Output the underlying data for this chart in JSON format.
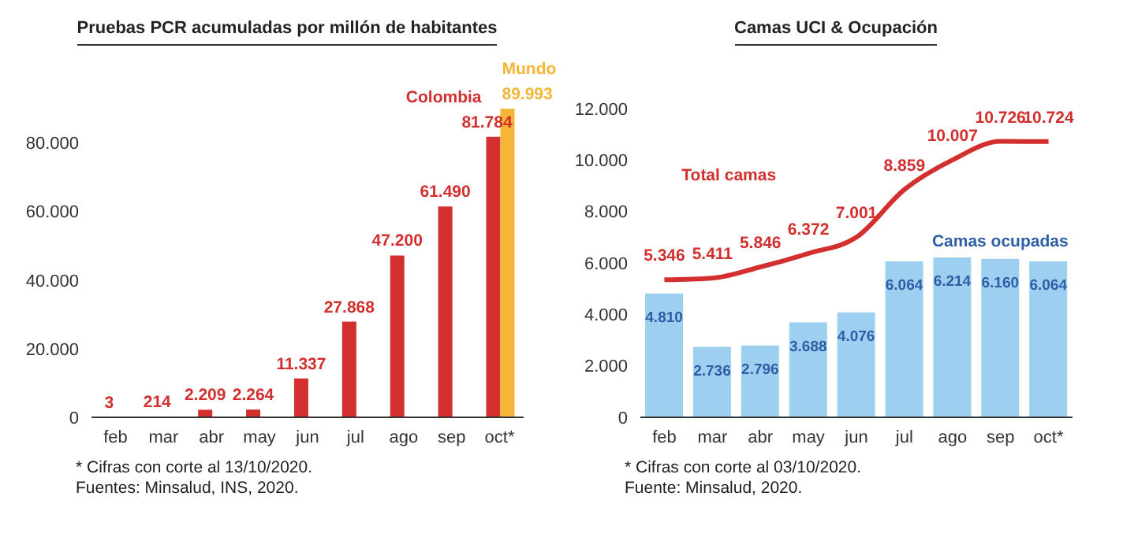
{
  "chart_data": [
    {
      "type": "bar",
      "title": "Pruebas PCR acumuladas por millón de habitantes",
      "categories": [
        "feb",
        "mar",
        "abr",
        "may",
        "jun",
        "jul",
        "ago",
        "sep",
        "oct*"
      ],
      "series": [
        {
          "name": "Colombia",
          "color": "#d32f2f",
          "values": [
            3,
            214,
            2209,
            2264,
            11337,
            27868,
            47200,
            61490,
            81784
          ],
          "value_labels": [
            "3",
            "214",
            "2.209",
            "2.264",
            "11.337",
            "27.868",
            "47.200",
            "61.490",
            "81.784"
          ]
        },
        {
          "name": "Mundo",
          "color": "#f7b538",
          "values": [
            null,
            null,
            null,
            null,
            null,
            null,
            null,
            null,
            89993
          ],
          "value_labels": [
            null,
            null,
            null,
            null,
            null,
            null,
            null,
            null,
            "89.993"
          ]
        }
      ],
      "ylim": [
        0,
        90000
      ],
      "yticks": [
        0,
        {
          "value": 20000,
          "label": "20.000"
        },
        {
          "value": 40000,
          "label": "40.000"
        },
        {
          "value": 60000,
          "label": "60.000"
        },
        {
          "value": 80000,
          "label": "80.000"
        }
      ],
      "grid": false,
      "legend": false,
      "annotations": [
        "* Cifras con corte al 13/10/2020.",
        "Fuentes: Minsalud, INS, 2020."
      ]
    },
    {
      "type": "bar",
      "title": "Camas UCI & Ocupación",
      "categories": [
        "feb",
        "mar",
        "abr",
        "may",
        "jun",
        "jul",
        "ago",
        "sep",
        "oct*"
      ],
      "series": [
        {
          "name": "Camas ocupadas",
          "color": "#9dd0f0",
          "values": [
            4810,
            2736,
            2796,
            3688,
            4076,
            6064,
            6214,
            6160,
            6064
          ],
          "value_labels": [
            "4.810",
            "2.736",
            "2.796",
            "3.688",
            "4.076",
            "6.064",
            "6.214",
            "6.160",
            "6.064"
          ]
        },
        {
          "name": "Total camas",
          "type": "line",
          "color": "#d32f2f",
          "marker": "none",
          "values": [
            5346,
            5411,
            5846,
            6372,
            7001,
            8859,
            10007,
            10726,
            10724
          ],
          "value_labels": [
            "5.346",
            "5.411",
            "5.846",
            "6.372",
            "7.001",
            "8.859",
            "10.007",
            "10.726",
            "10.724"
          ]
        }
      ],
      "ylim": [
        0,
        12000
      ],
      "yticks": [
        0,
        {
          "value": 2000,
          "label": "2.000"
        },
        {
          "value": 4000,
          "label": "4.000"
        },
        {
          "value": 6000,
          "label": "6.000"
        },
        {
          "value": 8000,
          "label": "8.000"
        },
        {
          "value": 10000,
          "label": "10.000"
        },
        {
          "value": 12000,
          "label": "12.000"
        }
      ],
      "grid": false,
      "legend": false,
      "annotations": [
        "* Cifras con corte al 03/10/2020.",
        "Fuente: Minsalud, 2020."
      ]
    }
  ]
}
